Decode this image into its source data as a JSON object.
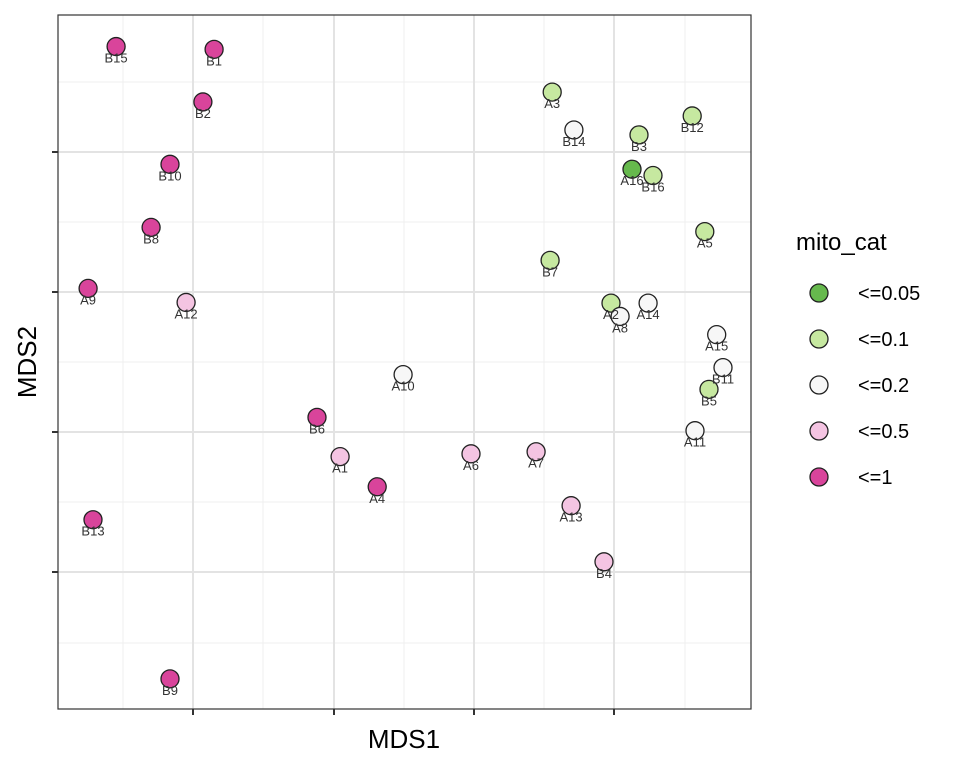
{
  "chart_data": {
    "type": "scatter",
    "xlabel": "MDS1",
    "ylabel": "MDS2",
    "xlim": [
      0,
      9.9
    ],
    "ylim": [
      0,
      9.9
    ],
    "grid": true,
    "legend": {
      "title": "mito_cat",
      "position": "right",
      "entries": [
        {
          "label": "<=0.05",
          "color": "#66b94d"
        },
        {
          "label": "<=0.1",
          "color": "#c6e8a0"
        },
        {
          "label": "<=0.2",
          "color": "#f7f7f7"
        },
        {
          "label": "<=0.5",
          "color": "#f4c4e2"
        },
        {
          "label": "<=1",
          "color": "#d9449b"
        }
      ]
    },
    "points": [
      {
        "label": "B15",
        "x": 0.83,
        "y": 9.45,
        "cat": "<=1"
      },
      {
        "label": "B1",
        "x": 2.23,
        "y": 9.41,
        "cat": "<=1"
      },
      {
        "label": "B2",
        "x": 2.07,
        "y": 8.66,
        "cat": "<=1"
      },
      {
        "label": "B10",
        "x": 1.6,
        "y": 7.77,
        "cat": "<=1"
      },
      {
        "label": "B8",
        "x": 1.33,
        "y": 6.87,
        "cat": "<=1"
      },
      {
        "label": "A9",
        "x": 0.43,
        "y": 6.0,
        "cat": "<=1"
      },
      {
        "label": "A12",
        "x": 1.83,
        "y": 5.8,
        "cat": "<=0.5"
      },
      {
        "label": "A10",
        "x": 4.93,
        "y": 4.77,
        "cat": "<=0.2"
      },
      {
        "label": "B6",
        "x": 3.7,
        "y": 4.16,
        "cat": "<=1"
      },
      {
        "label": "A1",
        "x": 4.03,
        "y": 3.6,
        "cat": "<=0.5"
      },
      {
        "label": "A4",
        "x": 4.56,
        "y": 3.17,
        "cat": "<=1"
      },
      {
        "label": "A6",
        "x": 5.9,
        "y": 3.64,
        "cat": "<=0.5"
      },
      {
        "label": "A7",
        "x": 6.83,
        "y": 3.67,
        "cat": "<=0.5"
      },
      {
        "label": "A13",
        "x": 7.33,
        "y": 2.9,
        "cat": "<=0.5"
      },
      {
        "label": "B4",
        "x": 7.8,
        "y": 2.1,
        "cat": "<=0.5"
      },
      {
        "label": "B13",
        "x": 0.5,
        "y": 2.7,
        "cat": "<=1"
      },
      {
        "label": "B9",
        "x": 1.6,
        "y": 0.43,
        "cat": "<=1"
      },
      {
        "label": "A3",
        "x": 7.06,
        "y": 8.8,
        "cat": "<=0.1"
      },
      {
        "label": "B14",
        "x": 7.37,
        "y": 8.26,
        "cat": "<=0.2"
      },
      {
        "label": "B3",
        "x": 8.3,
        "y": 8.19,
        "cat": "<=0.1"
      },
      {
        "label": "B12",
        "x": 9.06,
        "y": 8.46,
        "cat": "<=0.1"
      },
      {
        "label": "A16",
        "x": 8.2,
        "y": 7.7,
        "cat": "<=0.05"
      },
      {
        "label": "B16",
        "x": 8.5,
        "y": 7.61,
        "cat": "<=0.1"
      },
      {
        "label": "A5",
        "x": 9.24,
        "y": 6.81,
        "cat": "<=0.1"
      },
      {
        "label": "B7",
        "x": 7.03,
        "y": 6.4,
        "cat": "<=0.1"
      },
      {
        "label": "A2",
        "x": 7.9,
        "y": 5.79,
        "cat": "<=0.1"
      },
      {
        "label": "A8",
        "x": 8.03,
        "y": 5.6,
        "cat": "<=0.2"
      },
      {
        "label": "A14",
        "x": 8.43,
        "y": 5.79,
        "cat": "<=0.2"
      },
      {
        "label": "A15",
        "x": 9.41,
        "y": 5.34,
        "cat": "<=0.2"
      },
      {
        "label": "B11",
        "x": 9.5,
        "y": 4.87,
        "cat": "<=0.2"
      },
      {
        "label": "B5",
        "x": 9.3,
        "y": 4.56,
        "cat": "<=0.1"
      },
      {
        "label": "A11",
        "x": 9.1,
        "y": 3.97,
        "cat": "<=0.2"
      }
    ]
  }
}
